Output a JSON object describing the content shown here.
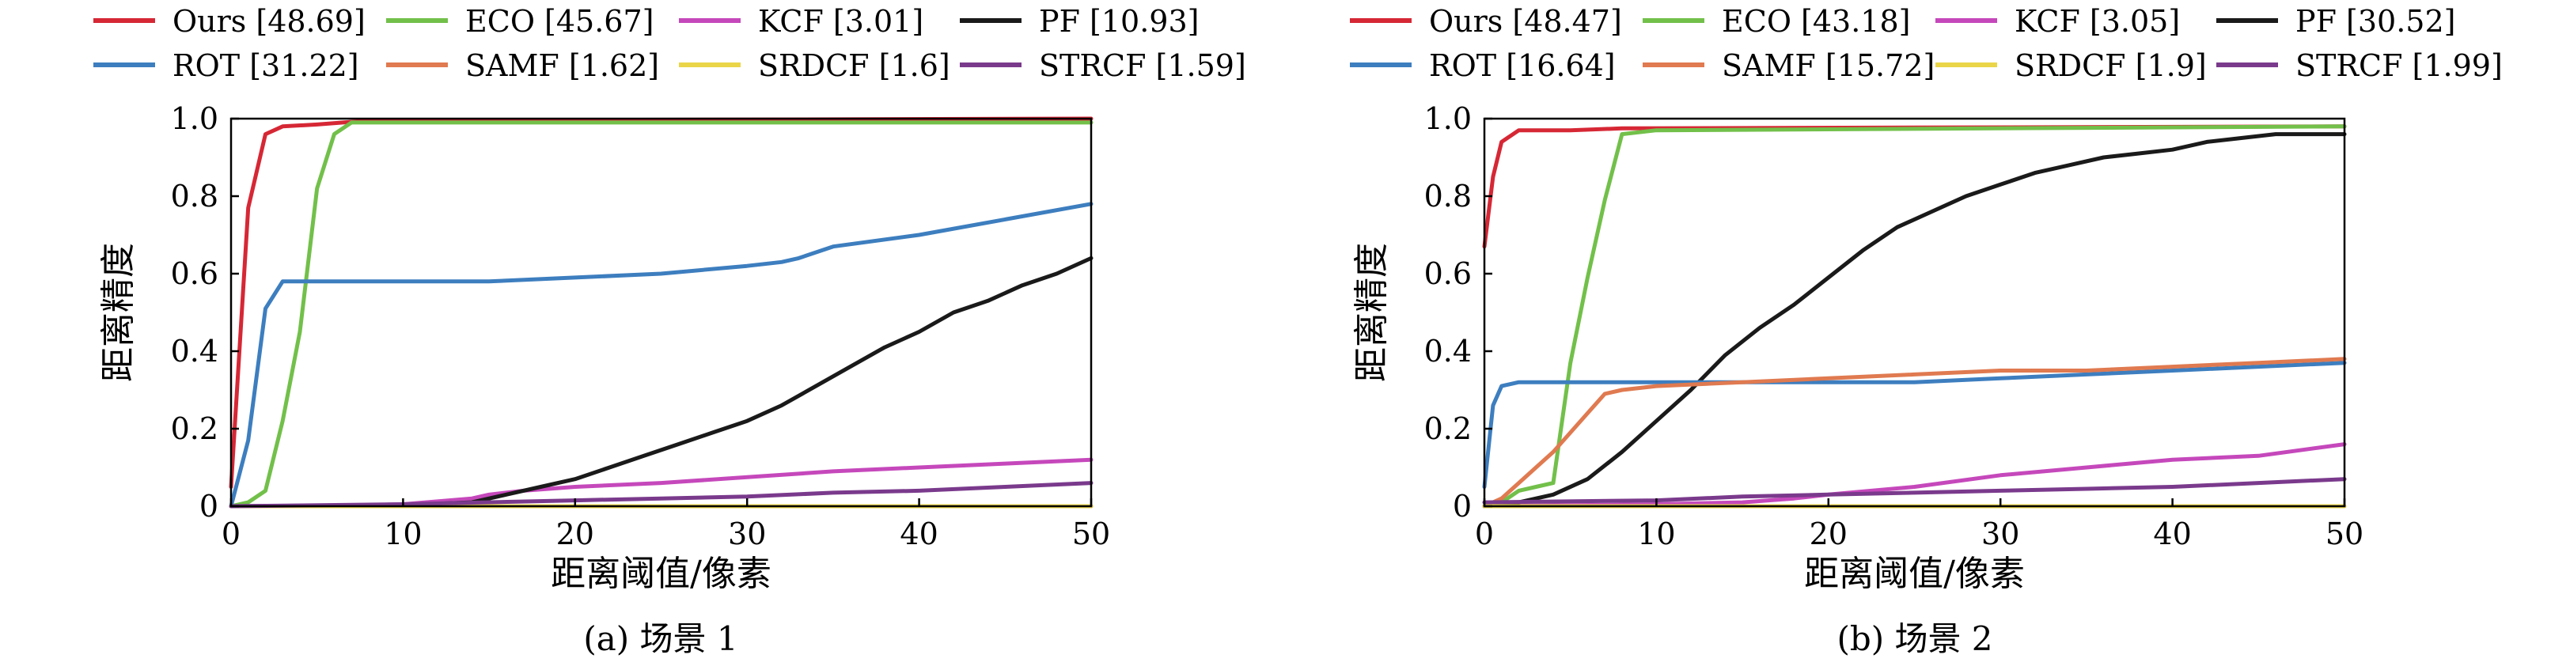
{
  "chart_data": [
    {
      "type": "line",
      "caption": "(a) 场景 1",
      "xlabel": "距离阈值/像素",
      "ylabel": "距离精度",
      "xlim": [
        0,
        50
      ],
      "ylim": [
        0,
        1
      ],
      "xticks": [
        "0",
        "10",
        "20",
        "30",
        "40",
        "50"
      ],
      "yticks": [
        "0",
        "0.2",
        "0.4",
        "0.6",
        "0.8",
        "1.0"
      ],
      "grid": false,
      "legend_position": "top",
      "series": [
        {
          "name": "Ours [48.69]",
          "color": "#d62735",
          "x": [
            0,
            1,
            2,
            3,
            5,
            8,
            50
          ],
          "y": [
            0.05,
            0.77,
            0.96,
            0.98,
            0.985,
            0.995,
            1.0
          ]
        },
        {
          "name": "ECO [45.67]",
          "color": "#72c04a",
          "x": [
            0,
            1,
            2,
            3,
            4,
            5,
            6,
            7,
            8,
            50
          ],
          "y": [
            0.0,
            0.01,
            0.04,
            0.22,
            0.45,
            0.82,
            0.96,
            0.99,
            0.99,
            0.99
          ]
        },
        {
          "name": "KCF [3.01]",
          "color": "#c548bb",
          "x": [
            0,
            5,
            10,
            14,
            15,
            17,
            20,
            25,
            30,
            35,
            40,
            45,
            50
          ],
          "y": [
            0.0,
            0.0,
            0.005,
            0.02,
            0.03,
            0.04,
            0.05,
            0.06,
            0.075,
            0.09,
            0.1,
            0.11,
            0.12
          ]
        },
        {
          "name": "PF [10.93]",
          "color": "#1a1a1a",
          "x": [
            0,
            10,
            14,
            16,
            18,
            20,
            22,
            24,
            26,
            28,
            30,
            32,
            34,
            36,
            38,
            40,
            42,
            44,
            46,
            48,
            50
          ],
          "y": [
            0.0,
            0.003,
            0.01,
            0.03,
            0.05,
            0.07,
            0.1,
            0.13,
            0.16,
            0.19,
            0.22,
            0.26,
            0.31,
            0.36,
            0.41,
            0.45,
            0.5,
            0.53,
            0.57,
            0.6,
            0.64
          ]
        },
        {
          "name": "ROT [31.22]",
          "color": "#3d7ebf",
          "x": [
            0,
            1,
            2,
            3,
            5,
            10,
            15,
            20,
            25,
            30,
            32,
            33,
            35,
            40,
            45,
            50
          ],
          "y": [
            0.0,
            0.17,
            0.51,
            0.58,
            0.58,
            0.58,
            0.58,
            0.59,
            0.6,
            0.62,
            0.63,
            0.64,
            0.67,
            0.7,
            0.74,
            0.78
          ]
        },
        {
          "name": "SAMF [1.62]",
          "color": "#e07a50",
          "x": [
            0,
            50
          ],
          "y": [
            0.0,
            0.0
          ]
        },
        {
          "name": "SRDCF [1.6]",
          "color": "#ead548",
          "x": [
            0,
            50
          ],
          "y": [
            0.0,
            0.0
          ]
        },
        {
          "name": "STRCF [1.59]",
          "color": "#7a3a8c",
          "x": [
            0,
            10,
            20,
            25,
            30,
            35,
            40,
            45,
            50
          ],
          "y": [
            0.0,
            0.005,
            0.015,
            0.02,
            0.025,
            0.035,
            0.04,
            0.05,
            0.06
          ]
        }
      ]
    },
    {
      "type": "line",
      "caption": "(b) 场景 2",
      "xlabel": "距离阈值/像素",
      "ylabel": "距离精度",
      "xlim": [
        0,
        50
      ],
      "ylim": [
        0,
        1
      ],
      "xticks": [
        "0",
        "10",
        "20",
        "30",
        "40",
        "50"
      ],
      "yticks": [
        "0",
        "0.2",
        "0.4",
        "0.6",
        "0.8",
        "1.0"
      ],
      "grid": false,
      "legend_position": "top",
      "series": [
        {
          "name": "Ours [48.47]",
          "color": "#d62735",
          "x": [
            0,
            0.5,
            1,
            2,
            5,
            8,
            50
          ],
          "y": [
            0.67,
            0.85,
            0.94,
            0.97,
            0.97,
            0.975,
            0.98
          ]
        },
        {
          "name": "ECO [43.18]",
          "color": "#72c04a",
          "x": [
            0,
            1,
            2,
            3,
            4,
            5,
            6,
            7,
            8,
            10,
            50
          ],
          "y": [
            0.0,
            0.01,
            0.04,
            0.05,
            0.06,
            0.37,
            0.59,
            0.79,
            0.96,
            0.97,
            0.98
          ]
        },
        {
          "name": "KCF [3.05]",
          "color": "#c548bb",
          "x": [
            0,
            10,
            15,
            18,
            20,
            25,
            30,
            35,
            40,
            45,
            50
          ],
          "y": [
            0.0,
            0.005,
            0.01,
            0.02,
            0.03,
            0.05,
            0.08,
            0.1,
            0.12,
            0.13,
            0.16
          ]
        },
        {
          "name": "PF [30.52]",
          "color": "#1a1a1a",
          "x": [
            0,
            2,
            4,
            6,
            8,
            10,
            12,
            14,
            16,
            18,
            20,
            22,
            24,
            26,
            28,
            30,
            32,
            34,
            36,
            38,
            40,
            42,
            44,
            46,
            48,
            50
          ],
          "y": [
            0.0,
            0.01,
            0.03,
            0.07,
            0.14,
            0.22,
            0.3,
            0.39,
            0.46,
            0.52,
            0.59,
            0.66,
            0.72,
            0.76,
            0.8,
            0.83,
            0.86,
            0.88,
            0.9,
            0.91,
            0.92,
            0.94,
            0.95,
            0.96,
            0.96,
            0.96
          ]
        },
        {
          "name": "ROT [16.64]",
          "color": "#3d7ebf",
          "x": [
            0,
            0.5,
            1,
            2,
            5,
            10,
            15,
            20,
            25,
            30,
            35,
            40,
            45,
            50
          ],
          "y": [
            0.05,
            0.26,
            0.31,
            0.32,
            0.32,
            0.32,
            0.32,
            0.32,
            0.32,
            0.33,
            0.34,
            0.35,
            0.36,
            0.37
          ]
        },
        {
          "name": "SAMF [15.72]",
          "color": "#e07a50",
          "x": [
            0,
            1,
            2,
            3,
            4,
            5,
            6,
            7,
            8,
            10,
            15,
            20,
            25,
            30,
            35,
            40,
            45,
            50
          ],
          "y": [
            0.0,
            0.02,
            0.06,
            0.1,
            0.14,
            0.19,
            0.24,
            0.29,
            0.3,
            0.31,
            0.32,
            0.33,
            0.34,
            0.35,
            0.35,
            0.36,
            0.37,
            0.38
          ]
        },
        {
          "name": "SRDCF [1.9]",
          "color": "#ead548",
          "x": [
            0,
            50
          ],
          "y": [
            0.0,
            0.0
          ]
        },
        {
          "name": "STRCF [1.99]",
          "color": "#7a3a8c",
          "x": [
            0,
            10,
            15,
            20,
            25,
            30,
            35,
            40,
            45,
            50
          ],
          "y": [
            0.01,
            0.015,
            0.025,
            0.03,
            0.035,
            0.04,
            0.045,
            0.05,
            0.06,
            0.07
          ]
        }
      ]
    }
  ]
}
